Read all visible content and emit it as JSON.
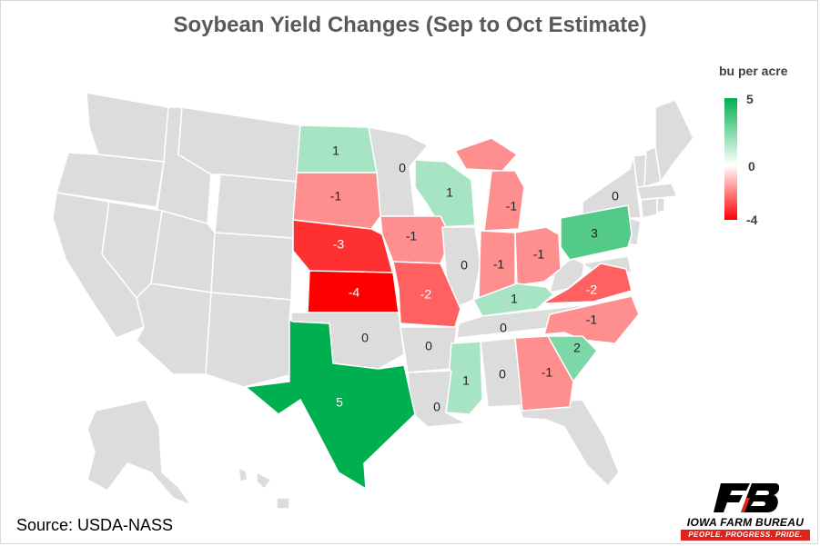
{
  "title": "Soybean Yield Changes (Sep to Oct Estimate)",
  "source": "Source: USDA-NASS",
  "legend": {
    "title": "bu per acre",
    "max": "5",
    "mid": "0",
    "min": "-4"
  },
  "colors": {
    "positive_max": "#00b050",
    "neutral": "#ffffff",
    "negative_max": "#ff0000",
    "base_state": "#dcdcdc"
  },
  "logo": {
    "name": "IOWA FARM BUREAU",
    "tagline": "PEOPLE. PROGRESS. PRIDE."
  },
  "states": [
    {
      "abbr": "ND",
      "value": 1,
      "label": "1"
    },
    {
      "abbr": "MN",
      "value": 0,
      "label": "0"
    },
    {
      "abbr": "SD",
      "value": -1,
      "label": "-1"
    },
    {
      "abbr": "WI",
      "value": 1,
      "label": "1"
    },
    {
      "abbr": "MI",
      "value": -1,
      "label": "-1"
    },
    {
      "abbr": "NY",
      "value": 0,
      "label": "0"
    },
    {
      "abbr": "NE",
      "value": -3,
      "label": "-3"
    },
    {
      "abbr": "IA",
      "value": -1,
      "label": "-1"
    },
    {
      "abbr": "IL",
      "value": 0,
      "label": "0"
    },
    {
      "abbr": "IN",
      "value": -1,
      "label": "-1"
    },
    {
      "abbr": "OH",
      "value": -1,
      "label": "-1"
    },
    {
      "abbr": "PA",
      "value": 3,
      "label": "3"
    },
    {
      "abbr": "KS",
      "value": -4,
      "label": "-4"
    },
    {
      "abbr": "MO",
      "value": -2,
      "label": "-2"
    },
    {
      "abbr": "KY",
      "value": 1,
      "label": "1"
    },
    {
      "abbr": "VA",
      "value": -2,
      "label": "-2"
    },
    {
      "abbr": "TN",
      "value": 0,
      "label": "0"
    },
    {
      "abbr": "NC",
      "value": -1,
      "label": "-1"
    },
    {
      "abbr": "OK",
      "value": 0,
      "label": "0"
    },
    {
      "abbr": "AR",
      "value": 0,
      "label": "0"
    },
    {
      "abbr": "SC",
      "value": 2,
      "label": "2"
    },
    {
      "abbr": "MS",
      "value": 1,
      "label": "1"
    },
    {
      "abbr": "AL",
      "value": 0,
      "label": "0"
    },
    {
      "abbr": "GA",
      "value": -1,
      "label": "-1"
    },
    {
      "abbr": "LA",
      "value": 0,
      "label": "0"
    },
    {
      "abbr": "TX",
      "value": 5,
      "label": "5"
    }
  ]
}
